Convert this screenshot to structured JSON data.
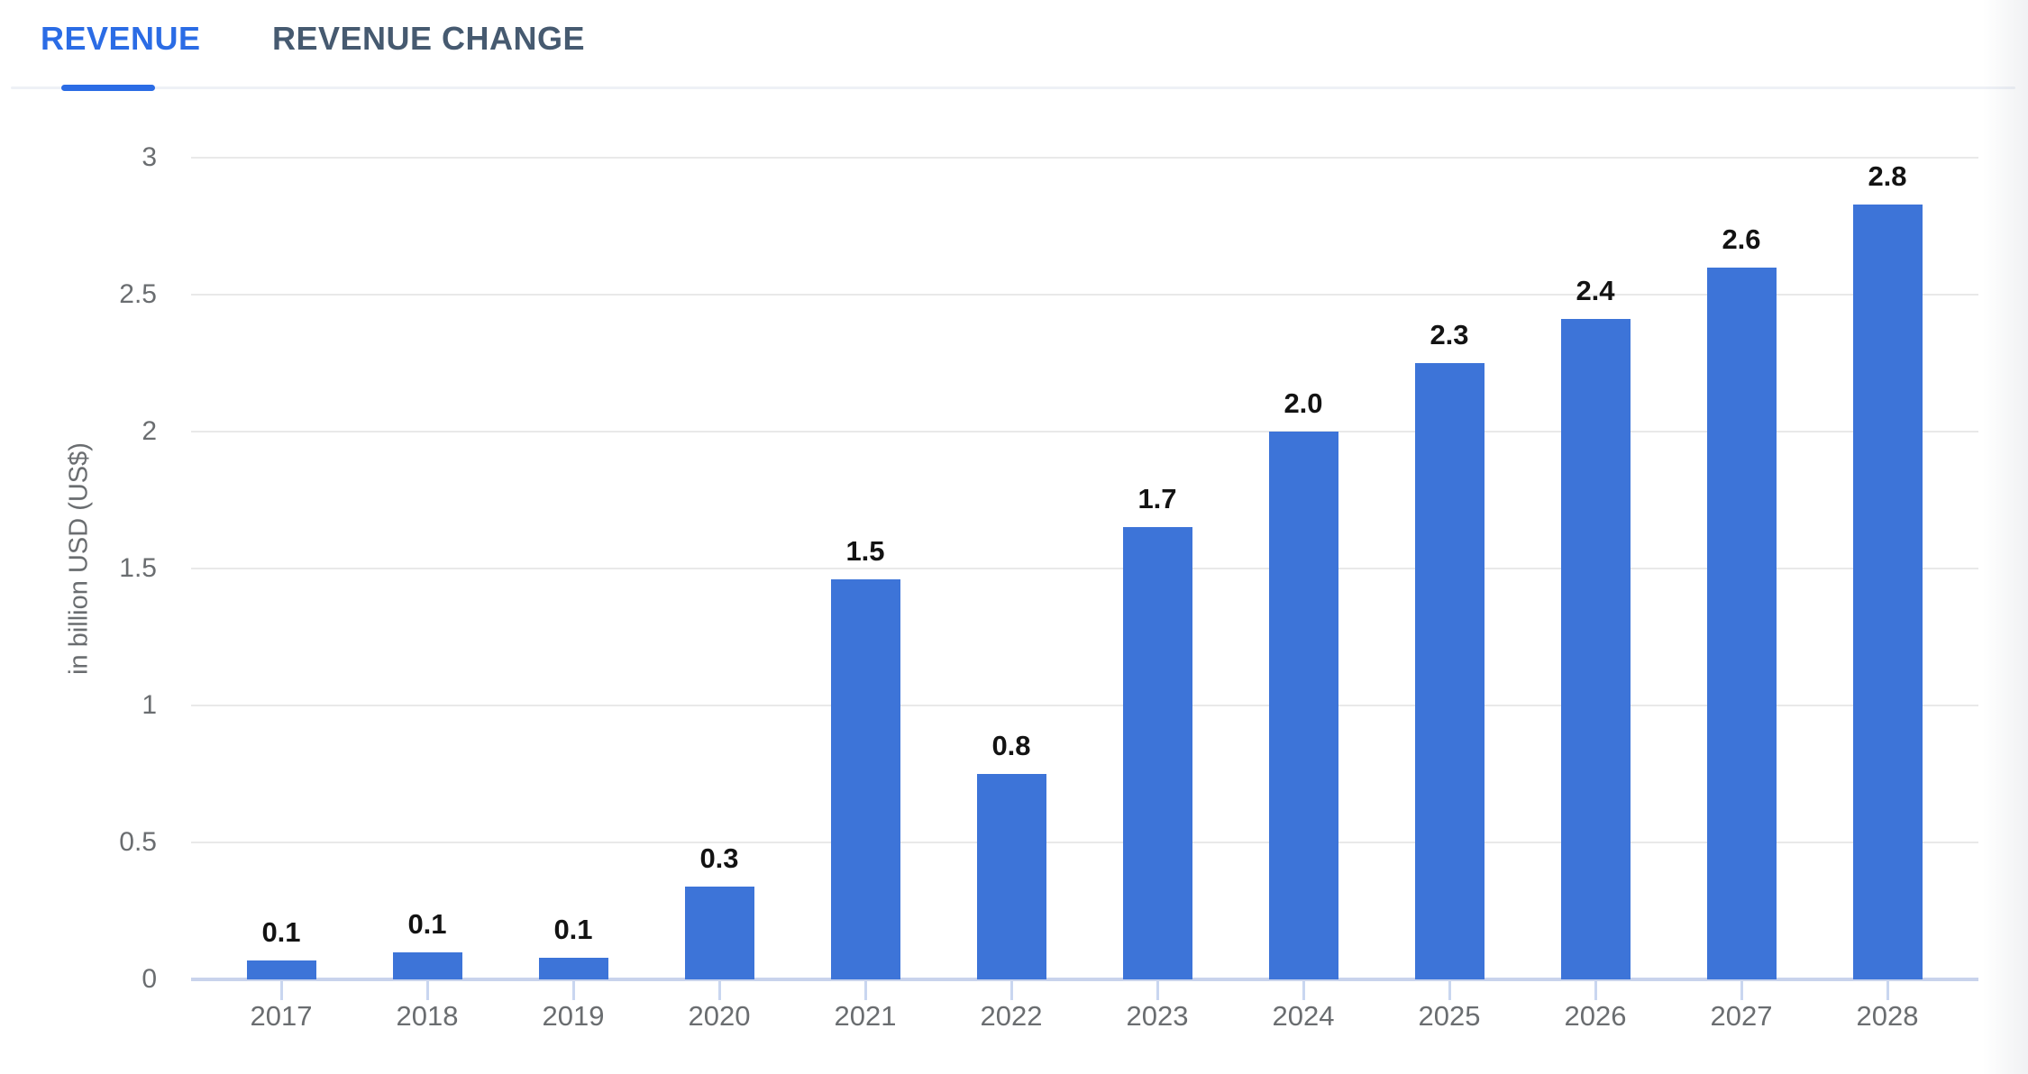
{
  "tabs": [
    {
      "label": "REVENUE",
      "active": true
    },
    {
      "label": "REVENUE CHANGE",
      "active": false
    }
  ],
  "colors": {
    "accent": "#2b6ce5",
    "tab-inactive": "#465a70",
    "divider": "#eef1f6",
    "bar-fill": "#3d74d8",
    "grid-line": "#e9e9e9",
    "axis-line": "#c9d3ec",
    "tick-mark": "#c9d6f0",
    "axis-text": "#6a6d70",
    "value-label": "#131313"
  },
  "chart_data": {
    "type": "bar",
    "categories": [
      "2017",
      "2018",
      "2019",
      "2020",
      "2021",
      "2022",
      "2023",
      "2024",
      "2025",
      "2026",
      "2027",
      "2028"
    ],
    "values": [
      0.1,
      0.1,
      0.1,
      0.3,
      1.5,
      0.8,
      1.7,
      2.0,
      2.3,
      2.4,
      2.6,
      2.8
    ],
    "bar_labels": [
      "0.1",
      "0.1",
      "0.1",
      "0.3",
      "1.5",
      "0.8",
      "1.7",
      "2.0",
      "2.3",
      "2.4",
      "2.6",
      "2.8"
    ],
    "values_precise": [
      0.07,
      0.1,
      0.08,
      0.34,
      1.46,
      0.75,
      1.65,
      2.0,
      2.25,
      2.41,
      2.6,
      2.83
    ],
    "xlabel": "",
    "ylabel": "in billion USD (US$)",
    "yticks": [
      0,
      0.5,
      1,
      1.5,
      2,
      2.5,
      3
    ],
    "ytick_labels": [
      "0",
      "0.5",
      "1",
      "1.5",
      "2",
      "2.5",
      "3"
    ],
    "ylim": [
      0,
      3.17
    ],
    "grid": true,
    "legend": false,
    "bar_color": "#3d74d8",
    "data_labels_shown": true
  }
}
